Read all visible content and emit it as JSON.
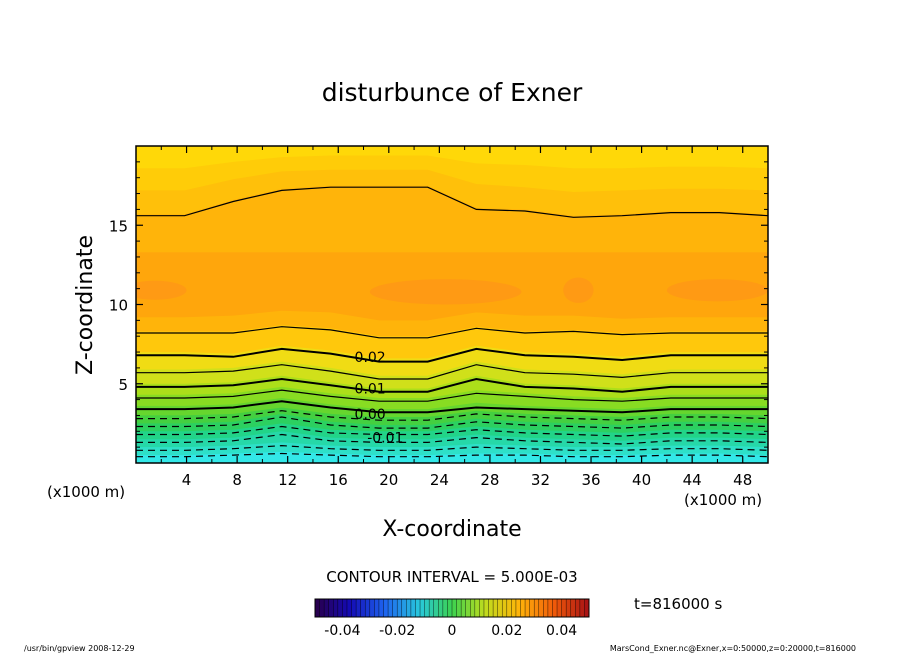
{
  "chart_data": {
    "type": "contour",
    "title": "disturbunce of Exner",
    "xlabel": "X-coordinate",
    "ylabel": "Z-coordinate",
    "x_unit_label": "(x1000 m)",
    "y_unit_label": "(x1000 m)",
    "xlim": [
      0,
      50
    ],
    "ylim": [
      0,
      20
    ],
    "x_ticks": [
      "4",
      "8",
      "12",
      "16",
      "20",
      "24",
      "28",
      "32",
      "36",
      "40",
      "44",
      "48"
    ],
    "y_ticks": [
      "5",
      "10",
      "15"
    ],
    "contour_interval_text": "CONTOUR INTERVAL = 5.000E-03",
    "contour_labels": [
      {
        "text": "0.02",
        "x": 16.5,
        "z": 6.7
      },
      {
        "text": "0.01",
        "x": 16.5,
        "z": 4.7
      },
      {
        "text": "0.00",
        "x": 16.5,
        "z": 3.1
      },
      {
        "text": "-0.01",
        "x": 17.5,
        "z": 1.6
      }
    ],
    "contours": [
      {
        "level": -0.03,
        "dashed": true,
        "z": [
          0.4,
          0.4,
          0.5,
          0.6,
          0.5,
          0.4,
          0.4,
          0.5,
          0.5,
          0.4,
          0.4,
          0.5,
          0.5,
          0.4
        ]
      },
      {
        "level": -0.025,
        "dashed": true,
        "z": [
          0.8,
          0.8,
          0.9,
          1.1,
          0.9,
          0.8,
          0.8,
          1.0,
          0.9,
          0.8,
          0.8,
          0.9,
          0.9,
          0.8
        ]
      },
      {
        "level": -0.02,
        "dashed": true,
        "z": [
          1.3,
          1.3,
          1.4,
          1.8,
          1.4,
          1.3,
          1.3,
          1.6,
          1.4,
          1.3,
          1.2,
          1.4,
          1.4,
          1.3
        ]
      },
      {
        "level": -0.015,
        "dashed": true,
        "z": [
          1.8,
          1.8,
          1.9,
          2.3,
          1.9,
          1.8,
          1.8,
          2.1,
          1.9,
          1.8,
          1.7,
          1.9,
          1.9,
          1.8
        ]
      },
      {
        "level": -0.01,
        "dashed": true,
        "z": [
          2.3,
          2.3,
          2.4,
          2.9,
          2.4,
          2.2,
          2.2,
          2.6,
          2.4,
          2.3,
          2.2,
          2.4,
          2.4,
          2.3
        ]
      },
      {
        "level": -0.005,
        "dashed": true,
        "z": [
          2.8,
          2.8,
          2.9,
          3.3,
          2.9,
          2.7,
          2.7,
          3.1,
          2.9,
          2.8,
          2.7,
          2.9,
          2.9,
          2.8
        ]
      },
      {
        "level": 0.0,
        "dashed": false,
        "z": [
          3.4,
          3.4,
          3.5,
          3.9,
          3.5,
          3.2,
          3.2,
          3.5,
          3.4,
          3.3,
          3.2,
          3.4,
          3.4,
          3.4
        ]
      },
      {
        "level": 0.005,
        "dashed": false,
        "z": [
          4.1,
          4.1,
          4.2,
          4.6,
          4.2,
          3.9,
          3.9,
          4.4,
          4.2,
          4.0,
          3.9,
          4.1,
          4.1,
          4.1
        ]
      },
      {
        "level": 0.01,
        "dashed": false,
        "z": [
          4.8,
          4.8,
          4.9,
          5.3,
          4.9,
          4.5,
          4.5,
          5.3,
          4.8,
          4.7,
          4.5,
          4.8,
          4.8,
          4.8
        ]
      },
      {
        "level": 0.015,
        "dashed": false,
        "z": [
          5.7,
          5.7,
          5.8,
          6.2,
          5.8,
          5.3,
          5.3,
          6.2,
          5.7,
          5.6,
          5.4,
          5.7,
          5.7,
          5.7
        ]
      },
      {
        "level": 0.02,
        "dashed": false,
        "z": [
          6.8,
          6.8,
          6.7,
          7.2,
          6.9,
          6.4,
          6.4,
          7.2,
          6.8,
          6.7,
          6.5,
          6.8,
          6.8,
          6.8
        ]
      },
      {
        "level": 0.025,
        "dashed": false,
        "z": [
          8.2,
          8.2,
          8.2,
          8.6,
          8.4,
          7.9,
          7.9,
          8.5,
          8.2,
          8.3,
          8.1,
          8.2,
          8.2,
          8.2
        ]
      },
      {
        "level": 0.025,
        "dashed": false,
        "z": [
          15.6,
          15.6,
          16.5,
          17.2,
          17.4,
          17.4,
          17.4,
          16.0,
          15.9,
          15.5,
          15.6,
          15.8,
          15.8,
          15.6
        ]
      }
    ],
    "fill_bands": [
      {
        "z": [
          0.5,
          0.5,
          0.6,
          0.7,
          0.6,
          0.5,
          0.5,
          0.6,
          0.6,
          0.5,
          0.5,
          0.6,
          0.6,
          0.5
        ],
        "color": "#33e8e8"
      },
      {
        "z": [
          1.0,
          1.0,
          1.1,
          1.3,
          1.1,
          1.0,
          1.0,
          1.2,
          1.1,
          1.0,
          1.0,
          1.1,
          1.1,
          1.0
        ],
        "color": "#2ee0c8"
      },
      {
        "z": [
          1.5,
          1.5,
          1.6,
          2.0,
          1.6,
          1.5,
          1.5,
          1.8,
          1.6,
          1.5,
          1.4,
          1.6,
          1.6,
          1.5
        ],
        "color": "#26d8a8"
      },
      {
        "z": [
          2.0,
          2.0,
          2.1,
          2.5,
          2.1,
          2.0,
          2.0,
          2.3,
          2.1,
          2.0,
          1.9,
          2.1,
          2.1,
          2.0
        ],
        "color": "#22d488"
      },
      {
        "z": [
          2.5,
          2.5,
          2.6,
          3.1,
          2.6,
          2.4,
          2.4,
          2.8,
          2.6,
          2.5,
          2.4,
          2.6,
          2.6,
          2.5
        ],
        "color": "#2cd060"
      },
      {
        "z": [
          3.0,
          3.0,
          3.1,
          3.5,
          3.1,
          2.9,
          2.9,
          3.3,
          3.1,
          3.0,
          2.9,
          3.1,
          3.1,
          3.0
        ],
        "color": "#44d040"
      },
      {
        "z": [
          3.6,
          3.6,
          3.7,
          4.1,
          3.7,
          3.4,
          3.4,
          3.8,
          3.6,
          3.5,
          3.4,
          3.6,
          3.6,
          3.6
        ],
        "color": "#66d62e"
      },
      {
        "z": [
          4.3,
          4.3,
          4.4,
          4.8,
          4.4,
          4.1,
          4.1,
          4.6,
          4.4,
          4.2,
          4.1,
          4.3,
          4.3,
          4.3
        ],
        "color": "#88dc22"
      },
      {
        "z": [
          5.0,
          5.0,
          5.1,
          5.5,
          5.1,
          4.7,
          4.7,
          5.5,
          5.0,
          4.9,
          4.7,
          5.0,
          5.0,
          5.0
        ],
        "color": "#acdf1a"
      },
      {
        "z": [
          5.9,
          5.9,
          6.0,
          6.4,
          6.0,
          5.5,
          5.5,
          6.4,
          5.9,
          5.8,
          5.6,
          5.9,
          5.9,
          5.9
        ],
        "color": "#d0e01a"
      },
      {
        "z": [
          7.0,
          7.0,
          6.9,
          7.4,
          7.1,
          6.6,
          6.6,
          7.4,
          7.0,
          6.9,
          6.7,
          7.0,
          7.0,
          7.0
        ],
        "color": "#f0dc14"
      },
      {
        "z": [
          8.3,
          8.3,
          8.3,
          8.7,
          8.5,
          8.0,
          8.0,
          8.6,
          8.3,
          8.4,
          8.2,
          8.3,
          8.3,
          8.3
        ],
        "color": "#ffc80c"
      },
      {
        "z": [
          9.2,
          9.2,
          9.3,
          9.6,
          9.5,
          9.0,
          9.0,
          9.5,
          9.3,
          9.3,
          9.1,
          9.2,
          9.2,
          9.2
        ],
        "color": "#ffb40a"
      },
      {
        "z": [
          13.3,
          13.3,
          13.3,
          13.3,
          13.3,
          13.3,
          13.3,
          13.3,
          13.3,
          13.3,
          13.3,
          13.3,
          13.3,
          13.3
        ],
        "color": "#ffa60c"
      },
      {
        "z": [
          15.7,
          15.7,
          16.6,
          17.3,
          17.5,
          17.5,
          17.5,
          16.1,
          16.0,
          15.6,
          15.7,
          15.9,
          15.9,
          15.7
        ],
        "color": "#ffb40a"
      },
      {
        "z": [
          17.2,
          17.2,
          17.9,
          18.4,
          18.5,
          18.5,
          18.5,
          17.6,
          17.4,
          17.1,
          17.2,
          17.3,
          17.3,
          17.2
        ],
        "color": "#ffc00a"
      },
      {
        "z": [
          18.6,
          18.6,
          19.0,
          19.3,
          19.4,
          19.4,
          19.4,
          18.9,
          18.8,
          18.6,
          18.6,
          18.7,
          18.7,
          18.6
        ],
        "color": "#ffcc08"
      },
      {
        "z": [
          20,
          20,
          20,
          20,
          20,
          20,
          20,
          20,
          20,
          20,
          20,
          20,
          20,
          20
        ],
        "color": "#ffd808"
      }
    ],
    "max_blobs": [
      {
        "x": 1.5,
        "z": 10.9,
        "rx": 2.5,
        "rz": 0.6
      },
      {
        "x": 24.5,
        "z": 10.8,
        "rx": 6,
        "rz": 0.8
      },
      {
        "x": 35.0,
        "z": 10.9,
        "rx": 1.2,
        "rz": 0.8
      },
      {
        "x": 46.0,
        "z": 10.9,
        "rx": 4,
        "rz": 0.7
      }
    ],
    "colorbar": {
      "tick_labels": [
        "-0.04",
        "-0.02",
        "0",
        "0.02",
        "0.04"
      ],
      "tick_values": [
        -0.04,
        -0.02,
        0,
        0.02,
        0.04
      ],
      "range": [
        -0.05,
        0.05
      ]
    },
    "time_label": "t=816000 s",
    "footer_left": "/usr/bin/gpview   2008-12-29",
    "footer_right": "MarsCond_Exner.nc@Exner,x=0:50000,z=0:20000,t=816000"
  }
}
